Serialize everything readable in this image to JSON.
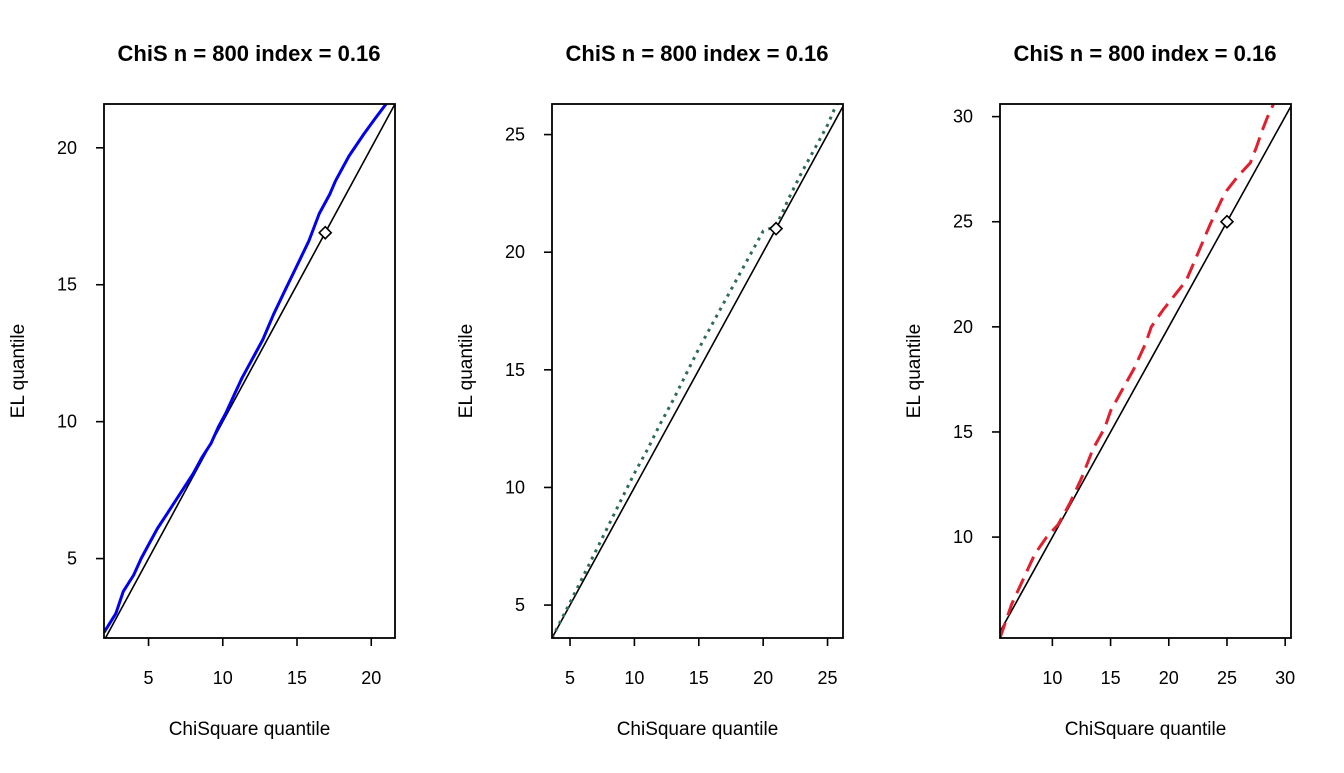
{
  "chart_data": [
    {
      "type": "line",
      "title": "ChiS n = 800 index = 0.16",
      "xlabel": "ChiSquare quantile",
      "ylabel": "EL quantile",
      "xlim": [
        2.0,
        21.6
      ],
      "ylim": [
        2.1,
        21.6
      ],
      "xticks": [
        5,
        10,
        15,
        20
      ],
      "yticks": [
        5,
        10,
        15,
        20
      ],
      "reference_line": "y = x",
      "marker": {
        "shape": "diamond",
        "x": 16.9,
        "y": 16.9
      },
      "series": [
        {
          "style": "solid",
          "color": "#0000ee",
          "x": [
            2.0,
            2.8,
            3.3,
            4.0,
            4.5,
            5.0,
            5.6,
            6.2,
            6.8,
            7.4,
            8.0,
            8.6,
            9.2,
            9.7,
            10.2,
            10.7,
            11.3,
            12.0,
            12.7,
            13.4,
            14.2,
            15.0,
            15.8,
            16.5,
            17.2,
            17.6,
            18.5,
            19.5,
            20.3,
            21.0
          ],
          "y": [
            2.3,
            3.0,
            3.8,
            4.4,
            5.0,
            5.5,
            6.1,
            6.6,
            7.1,
            7.6,
            8.1,
            8.7,
            9.2,
            9.8,
            10.3,
            10.9,
            11.6,
            12.3,
            13.0,
            13.9,
            14.8,
            15.7,
            16.6,
            17.6,
            18.3,
            18.8,
            19.7,
            20.5,
            21.1,
            21.6
          ]
        }
      ]
    },
    {
      "type": "line",
      "title": "ChiS n = 800 index = 0.16",
      "xlabel": "ChiSquare quantile",
      "ylabel": "EL quantile",
      "xlim": [
        3.6,
        26.2
      ],
      "ylim": [
        3.6,
        26.3
      ],
      "xticks": [
        5,
        10,
        15,
        20,
        25
      ],
      "yticks": [
        5,
        10,
        15,
        20,
        25
      ],
      "reference_line": "y = x",
      "marker": {
        "shape": "diamond",
        "x": 21.0,
        "y": 21.0
      },
      "series": [
        {
          "style": "dotted",
          "color": "#2e6b55",
          "x": [
            3.6,
            5,
            6,
            7,
            8,
            9,
            10,
            11,
            12,
            13,
            14,
            15,
            16,
            17,
            18,
            19,
            20,
            21,
            22,
            23,
            24,
            25,
            25.7
          ],
          "y": [
            3.6,
            5.1,
            6.2,
            7.3,
            8.4,
            9.5,
            10.6,
            11.6,
            12.7,
            13.7,
            14.8,
            15.9,
            16.9,
            17.9,
            18.9,
            19.9,
            20.9,
            21.1,
            22.3,
            23.4,
            24.4,
            25.4,
            26.3
          ]
        }
      ]
    },
    {
      "type": "line",
      "title": "ChiS n = 800 index = 0.16",
      "xlabel": "ChiSquare quantile",
      "ylabel": "EL quantile",
      "xlim": [
        5.5,
        30.5
      ],
      "ylim": [
        5.2,
        30.6
      ],
      "xticks": [
        10,
        15,
        20,
        25,
        30
      ],
      "yticks": [
        10,
        15,
        20,
        25,
        30
      ],
      "reference_line": "y = x",
      "marker": {
        "shape": "diamond",
        "x": 25.0,
        "y": 25.0
      },
      "series": [
        {
          "style": "dashed",
          "color": "#e0202e",
          "x": [
            5.5,
            6.5,
            7.5,
            8.5,
            9.5,
            10.5,
            11.5,
            12.5,
            13.5,
            14.5,
            15.0,
            16.0,
            17.0,
            18.0,
            18.5,
            19.5,
            20.5,
            21.5,
            22.5,
            23.5,
            24.5,
            25.0,
            26.0,
            27.0,
            27.5,
            28.0,
            28.5,
            29.0
          ],
          "y": [
            5.2,
            6.8,
            8.0,
            9.2,
            10.0,
            10.6,
            11.6,
            12.8,
            14.2,
            15.2,
            16.0,
            17.0,
            18.0,
            19.2,
            20.0,
            20.8,
            21.5,
            22.2,
            23.5,
            24.8,
            26.0,
            26.5,
            27.2,
            27.8,
            28.5,
            29.3,
            30.0,
            30.6
          ]
        }
      ]
    }
  ]
}
